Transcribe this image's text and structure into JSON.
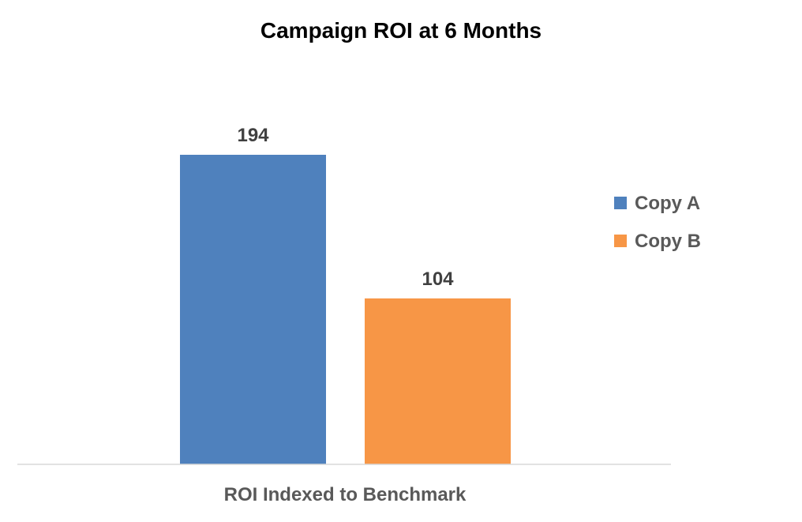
{
  "chart_data": {
    "type": "bar",
    "title": "Campaign ROI at 6 Months",
    "categories": [
      "ROI Indexed to Benchmark"
    ],
    "series": [
      {
        "name": "Copy A",
        "values": [
          194
        ],
        "color": "#4F81BD"
      },
      {
        "name": "Copy B",
        "values": [
          104
        ],
        "color": "#F79646"
      }
    ],
    "xlabel": "",
    "ylabel": "",
    "ylim": [
      0,
      194
    ],
    "grid": false,
    "show_y_axis": false,
    "data_labels": true,
    "legend_position": "right"
  }
}
